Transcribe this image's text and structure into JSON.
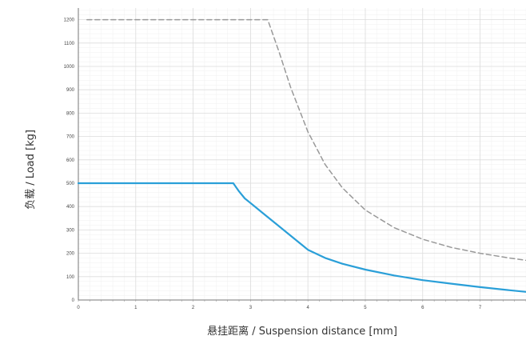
{
  "chart_data": {
    "type": "line",
    "title": "",
    "xlabel": "悬挂距离 / Suspension distance [mm]",
    "ylabel": "负载 / Load [kg]",
    "xlim": [
      0,
      7.8
    ],
    "ylim": [
      0,
      1250
    ],
    "x_ticks": [
      0,
      1,
      2,
      3,
      4,
      5,
      6,
      7
    ],
    "y_ticks": [
      0,
      100,
      200,
      300,
      400,
      500,
      600,
      700,
      800,
      900,
      1000,
      1100,
      1200
    ],
    "grid": true,
    "series": [
      {
        "color": "#2a9fd8",
        "line_style": "solid",
        "x": [
          0,
          2.7,
          2.8,
          2.9,
          3.0,
          3.2,
          3.5,
          3.8,
          4.0,
          4.3,
          4.6,
          5.0,
          5.5,
          6.0,
          6.5,
          7.0,
          7.5,
          7.8
        ],
        "y": [
          500,
          500,
          465,
          435,
          415,
          375,
          315,
          255,
          215,
          180,
          155,
          130,
          105,
          85,
          70,
          55,
          42,
          35
        ]
      },
      {
        "color": "#999999",
        "line_style": "dashed",
        "x": [
          0.15,
          3.3,
          3.5,
          3.7,
          4.0,
          4.3,
          4.6,
          5.0,
          5.5,
          6.0,
          6.5,
          7.0,
          7.5,
          7.8
        ],
        "y": [
          1200,
          1200,
          1060,
          910,
          720,
          580,
          480,
          385,
          310,
          260,
          225,
          200,
          180,
          170
        ]
      }
    ]
  }
}
